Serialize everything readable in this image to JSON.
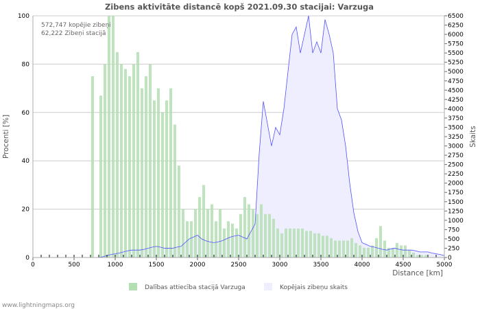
{
  "chart_data": {
    "type": "bar",
    "title": "Zibens aktivitāte distancē kopš 2021.09.30 stacijai: Varzuga",
    "annotations": [
      "572,747 kopējie zibeņi",
      "62,222 Zibeņi stacijā"
    ],
    "xlabel": "Distance   [km]",
    "ylabel_left": "Procenti   [%]",
    "ylabel_right": "Skaits",
    "xlim": [
      0,
      5000
    ],
    "ylim_left": [
      0,
      100
    ],
    "ylim_right": [
      0,
      6500
    ],
    "x_ticks": [
      "0",
      "500",
      "1000",
      "1500",
      "2000",
      "2500",
      "3000",
      "3500",
      "4000",
      "4500",
      "5000"
    ],
    "y_ticks_left": [
      "0",
      "20",
      "40",
      "60",
      "80",
      "100"
    ],
    "y_ticks_right": [
      "0",
      "250",
      "500",
      "750",
      "1000",
      "1250",
      "1500",
      "1750",
      "2000",
      "2250",
      "2500",
      "2750",
      "3000",
      "3250",
      "3500",
      "3750",
      "4000",
      "4250",
      "4500",
      "4750",
      "5000",
      "5250",
      "5500",
      "5750",
      "6000",
      "6250",
      "6500"
    ],
    "grid": true,
    "legend_placement": "bottom",
    "x_start": 0,
    "x_step": 50,
    "series": [
      {
        "name": "Dalības attiecība stacijā Varzuga",
        "type": "bar",
        "axis": "left",
        "color": "#b3dfb3",
        "values": [
          0,
          0,
          0,
          0,
          0,
          0,
          0,
          0,
          0,
          0,
          0,
          0,
          0,
          0,
          75,
          0,
          67,
          80,
          100,
          100,
          85,
          80,
          78,
          75,
          80,
          85,
          70,
          75,
          80,
          65,
          70,
          60,
          65,
          70,
          55,
          38,
          20,
          15,
          15,
          20,
          25,
          30,
          20,
          22,
          15,
          20,
          12,
          15,
          14,
          12,
          18,
          25,
          22,
          20,
          18,
          22,
          18,
          18,
          16,
          12,
          10,
          12,
          12,
          12,
          12,
          12,
          11,
          11,
          10,
          10,
          9,
          9,
          8,
          7,
          7,
          7,
          7,
          8,
          6,
          5,
          4,
          4,
          5,
          8,
          13,
          7,
          4,
          4,
          6,
          5,
          5,
          3,
          2,
          1,
          1,
          1,
          0,
          0,
          0,
          0,
          0
        ]
      },
      {
        "name": "Kopējais zibeņu skaits",
        "type": "area",
        "axis": "right",
        "color": "#5050ff",
        "fill": "#eeeeff",
        "values": [
          0,
          0,
          0,
          0,
          0,
          0,
          0,
          0,
          0,
          0,
          0,
          0,
          0,
          0,
          0,
          0,
          0,
          20,
          50,
          80,
          100,
          120,
          150,
          180,
          200,
          200,
          200,
          220,
          250,
          280,
          300,
          280,
          250,
          250,
          250,
          280,
          300,
          400,
          500,
          550,
          600,
          500,
          450,
          420,
          400,
          420,
          450,
          500,
          550,
          580,
          600,
          550,
          500,
          700,
          900,
          2800,
          4200,
          3600,
          3000,
          3500,
          3300,
          4000,
          5000,
          6000,
          6200,
          5500,
          6000,
          6500,
          5500,
          5800,
          5500,
          6400,
          6000,
          5500,
          4000,
          3700,
          3000,
          2000,
          1200,
          700,
          400,
          350,
          300,
          280,
          250,
          220,
          200,
          230,
          250,
          220,
          200,
          200,
          200,
          180,
          150,
          150,
          150,
          120,
          100,
          80,
          50
        ]
      }
    ],
    "footer": "www.lightningmaps.org"
  }
}
